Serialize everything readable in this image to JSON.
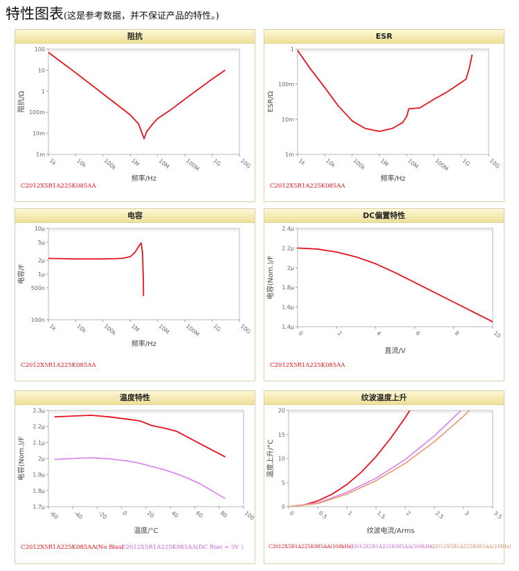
{
  "page": {
    "title": "特性图表",
    "subtitle": "(这是参考数据，并不保证产品的特性。)"
  },
  "colors": {
    "red": "#e8101a",
    "violet": "#dd88ee",
    "tan": "#e9a07a",
    "frame": "#d9cfa6",
    "legend_violet": "#cc66dd",
    "legend_tan": "#dd8866"
  },
  "chart_data": [
    {
      "type": "line",
      "title": "阻抗",
      "xlabel": "频率/Hz",
      "ylabel": "阻抗/Ω",
      "xscale": "log",
      "yscale": "log",
      "xlim": [
        1000,
        10000000000
      ],
      "ylim": [
        0.001,
        100
      ],
      "xticks": [
        1000,
        10000,
        100000,
        1000000,
        10000000,
        100000000,
        1000000000,
        10000000000
      ],
      "xticklabels": [
        "1k",
        "10k",
        "100k",
        "1M",
        "10M",
        "100M",
        "1G",
        "10G"
      ],
      "yticks": [
        0.001,
        0.01,
        0.1,
        1,
        10,
        100
      ],
      "yticklabels": [
        "1m",
        "10m",
        "100m",
        "1",
        "10",
        "100"
      ],
      "series": [
        {
          "name": "C2012X5R1A225K085AA",
          "color": "#e8101a",
          "x": [
            1000,
            10000,
            100000,
            1000000,
            2000000,
            2800000,
            3200000,
            4000000,
            7000000,
            10000000,
            30000000,
            100000000,
            1000000000,
            3000000000
          ],
          "y": [
            70,
            7.5,
            0.75,
            0.075,
            0.028,
            0.009,
            0.0055,
            0.012,
            0.03,
            0.05,
            0.13,
            0.42,
            3.8,
            10
          ]
        }
      ],
      "legend": [
        "C2012X5R1A225K085AA"
      ]
    },
    {
      "type": "line",
      "title": "ESR",
      "xlabel": "频率/Hz",
      "ylabel": "ESR/Ω",
      "xscale": "log",
      "yscale": "log",
      "xlim": [
        1000,
        10000000000
      ],
      "ylim": [
        0.001,
        1
      ],
      "xticks": [
        1000,
        10000,
        100000,
        1000000,
        10000000,
        100000000,
        1000000000,
        10000000000
      ],
      "xticklabels": [
        "1k",
        "10k",
        "100k",
        "1M",
        "10M",
        "100M",
        "1G",
        "10G"
      ],
      "yticks": [
        0.001,
        0.01,
        0.1,
        1
      ],
      "yticklabels": [
        "1m",
        "10m",
        "100m",
        "1"
      ],
      "series": [
        {
          "name": "C2012X5R1A225K085AA",
          "color": "#e8101a",
          "x": [
            1000,
            3000,
            10000,
            30000,
            100000,
            300000,
            1000000,
            3000000,
            7000000,
            10000000,
            12000000,
            30000000,
            100000000,
            300000000,
            800000000,
            1500000000,
            2000000000,
            2500000000
          ],
          "y": [
            0.92,
            0.27,
            0.08,
            0.025,
            0.009,
            0.0055,
            0.0045,
            0.0055,
            0.008,
            0.012,
            0.02,
            0.021,
            0.037,
            0.06,
            0.1,
            0.14,
            0.3,
            0.7
          ]
        }
      ],
      "legend": [
        "C2012X5R1A225K085AA"
      ]
    },
    {
      "type": "line",
      "title": "电容",
      "xlabel": "频率/Hz",
      "ylabel": "电容/F",
      "xscale": "log",
      "yscale": "log",
      "xlim": [
        1000,
        10000000000
      ],
      "ylim": [
        1e-07,
        1e-05
      ],
      "xticks": [
        1000,
        10000,
        100000,
        1000000,
        10000000,
        100000000,
        1000000000,
        10000000000
      ],
      "xticklabels": [
        "1k",
        "10k",
        "100k",
        "1M",
        "10M",
        "100M",
        "1G",
        "10G"
      ],
      "yticks": [
        1e-07,
        5e-07,
        1e-06,
        2e-06,
        5e-06,
        1e-05
      ],
      "yticklabels": [
        "100n",
        "500n",
        "1μ",
        "2μ",
        "5μ",
        "10μ"
      ],
      "series": [
        {
          "name": "C2012X5R1A225K085AA",
          "color": "#e8101a",
          "x": [
            1000,
            10000,
            100000,
            500000,
            1000000,
            1500000,
            2000000,
            2500000,
            2800000,
            3000000,
            3050000
          ],
          "y": [
            2.2e-06,
            2.15e-06,
            2.15e-06,
            2.2e-06,
            2.4e-06,
            3e-06,
            4e-06,
            4.8e-06,
            3e-06,
            8e-07,
            3.3e-07
          ]
        }
      ],
      "legend": [
        "C2012X5R1A225K085AA"
      ]
    },
    {
      "type": "line",
      "title": "DC偏置特性",
      "xlabel": "直流/V",
      "ylabel": "电容(Nom.)/F",
      "xlim": [
        0,
        10
      ],
      "ylim": [
        1.4e-06,
        2.4e-06
      ],
      "xticks": [
        0,
        2,
        4,
        6,
        8,
        10
      ],
      "xticklabels": [
        "0",
        "2",
        "4",
        "6",
        "8",
        "10"
      ],
      "yticks": [
        1.4e-06,
        1.6e-06,
        1.8e-06,
        2e-06,
        2.2e-06,
        2.4e-06
      ],
      "yticklabels": [
        "1.4μ",
        "1.6μ",
        "1.8μ",
        "2μ",
        "2.2μ",
        "2.4μ"
      ],
      "series": [
        {
          "name": "C2012X5R1A225K085AA",
          "color": "#e8101a",
          "x": [
            0,
            1,
            2,
            3,
            4,
            5,
            6,
            7,
            8,
            9,
            10
          ],
          "y": [
            2.2e-06,
            2.19e-06,
            2.16e-06,
            2.11e-06,
            2.04e-06,
            1.95e-06,
            1.85e-06,
            1.75e-06,
            1.65e-06,
            1.55e-06,
            1.45e-06
          ]
        }
      ],
      "legend": [
        "C2012X5R1A225K085AA"
      ]
    },
    {
      "type": "line",
      "title": "温度特性",
      "xlabel": "温度/°C",
      "ylabel": "电容(Nom.)/F",
      "xlim": [
        -60,
        100
      ],
      "ylim": [
        1.7e-06,
        2.3e-06
      ],
      "xticks": [
        -60,
        -40,
        -20,
        0,
        20,
        40,
        60,
        80,
        100
      ],
      "xticklabels": [
        "-60",
        "-40",
        "-20",
        "0",
        "20",
        "40",
        "60",
        "80",
        "100"
      ],
      "yticks": [
        1.7e-06,
        1.8e-06,
        1.9e-06,
        2e-06,
        2.1e-06,
        2.2e-06,
        2.3e-06
      ],
      "yticklabels": [
        "1.7μ",
        "1.8μ",
        "1.9μ",
        "2μ",
        "2.1μ",
        "2.2μ",
        "2.3μ"
      ],
      "series": [
        {
          "name": "C2012X5R1A225K085AA(No Bias)",
          "color": "#e8101a",
          "x": [
            -55,
            -40,
            -25,
            -10,
            5,
            15,
            25,
            35,
            45,
            55,
            65,
            75,
            85
          ],
          "y": [
            2.26e-06,
            2.265e-06,
            2.27e-06,
            2.26e-06,
            2.245e-06,
            2.235e-06,
            2.205e-06,
            2.19e-06,
            2.17e-06,
            2.13e-06,
            2.09e-06,
            2.05e-06,
            2.01e-06
          ]
        },
        {
          "name": "C2012X5R1A225K085AA(DC Bias = 5V )",
          "color": "#dd88ee",
          "x": [
            -55,
            -40,
            -25,
            -10,
            5,
            15,
            25,
            35,
            45,
            55,
            65,
            75,
            85
          ],
          "y": [
            1.995e-06,
            2e-06,
            2.005e-06,
            1.998e-06,
            1.985e-06,
            1.97e-06,
            1.95e-06,
            1.93e-06,
            1.905e-06,
            1.875e-06,
            1.84e-06,
            1.795e-06,
            1.75e-06
          ]
        }
      ],
      "legend": [
        "C2012X5R1A225K085AA(No Bias)",
        "C2012X5R1A225K085AA(DC Bias = 5V )"
      ]
    },
    {
      "type": "line",
      "title": "纹波温度上升",
      "xlabel": "纹波电流/Arms",
      "ylabel": "温度上升/°C",
      "xlim": [
        0,
        3.5
      ],
      "ylim": [
        0,
        20
      ],
      "xticks": [
        0,
        0.5,
        1,
        1.5,
        2,
        2.5,
        3,
        3.5
      ],
      "xticklabels": [
        "0",
        "0.5",
        "1",
        "1.5",
        "2",
        "2.5",
        "3",
        "3.5"
      ],
      "yticks": [
        0,
        5,
        10,
        15,
        20
      ],
      "yticklabels": [
        "0",
        "5",
        "10",
        "15",
        "20"
      ],
      "series": [
        {
          "name": "C2012X5R1A225K085AA(100kHz)",
          "color": "#e8101a",
          "x": [
            0,
            0.25,
            0.5,
            0.75,
            1,
            1.25,
            1.5,
            1.75,
            2,
            2.2
          ],
          "y": [
            0,
            0.3,
            1.2,
            2.6,
            4.6,
            7.2,
            10.4,
            14.2,
            18.5,
            22.4
          ]
        },
        {
          "name": "C2012X5R1A225K085AA(500kHz)",
          "color": "#dd88ee",
          "x": [
            0,
            0.5,
            1,
            1.5,
            2,
            2.5,
            3,
            3.5
          ],
          "y": [
            0,
            0.75,
            3,
            5.9,
            9.8,
            14.7,
            20.5,
            27.3
          ]
        },
        {
          "name": "C2012X5R1A225K085AA(1MHz)",
          "color": "#e9a07a",
          "x": [
            0,
            0.5,
            1,
            1.5,
            2,
            2.5,
            3,
            3.5
          ],
          "y": [
            0,
            0.65,
            2.6,
            5.4,
            9,
            13.5,
            18.8,
            25
          ]
        }
      ],
      "legend": [
        "C2012X5R1A225K085AA(100kHz)",
        "C2012X5R1A225K085AA(500kHz)",
        "C2012X5R1A225K085AA(1MHz)"
      ]
    }
  ]
}
